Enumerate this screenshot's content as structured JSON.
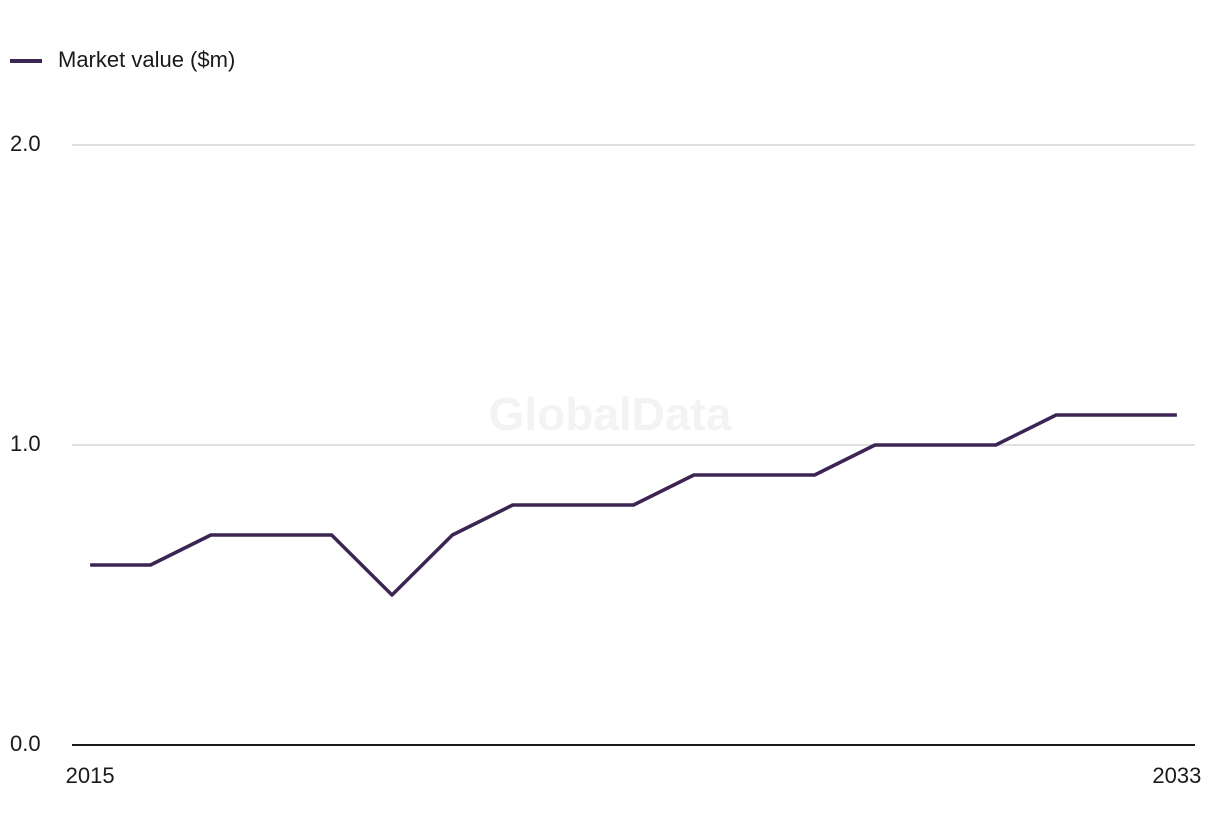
{
  "chart_data": {
    "type": "line",
    "watermark": "GlobalData",
    "x": [
      2015,
      2016,
      2017,
      2018,
      2019,
      2020,
      2021,
      2022,
      2023,
      2024,
      2025,
      2026,
      2027,
      2028,
      2029,
      2030,
      2031,
      2032,
      2033
    ],
    "series": [
      {
        "name": "Market value ($m)",
        "color": "#3a2553",
        "values": [
          0.6,
          0.6,
          0.7,
          0.7,
          0.7,
          0.5,
          0.7,
          0.8,
          0.8,
          0.8,
          0.9,
          0.9,
          0.9,
          1.0,
          1.0,
          1.0,
          1.1,
          1.1,
          1.1
        ]
      }
    ],
    "xlim": [
      2014.7,
      2033.3
    ],
    "xticks": [
      2015,
      2033
    ],
    "ylim": [
      0,
      2
    ],
    "yticks": [
      {
        "value": 0,
        "label": "0.0"
      },
      {
        "value": 1,
        "label": "1.0"
      },
      {
        "value": 2,
        "label": "2.0"
      }
    ],
    "grid": true,
    "legend": "top-left"
  }
}
